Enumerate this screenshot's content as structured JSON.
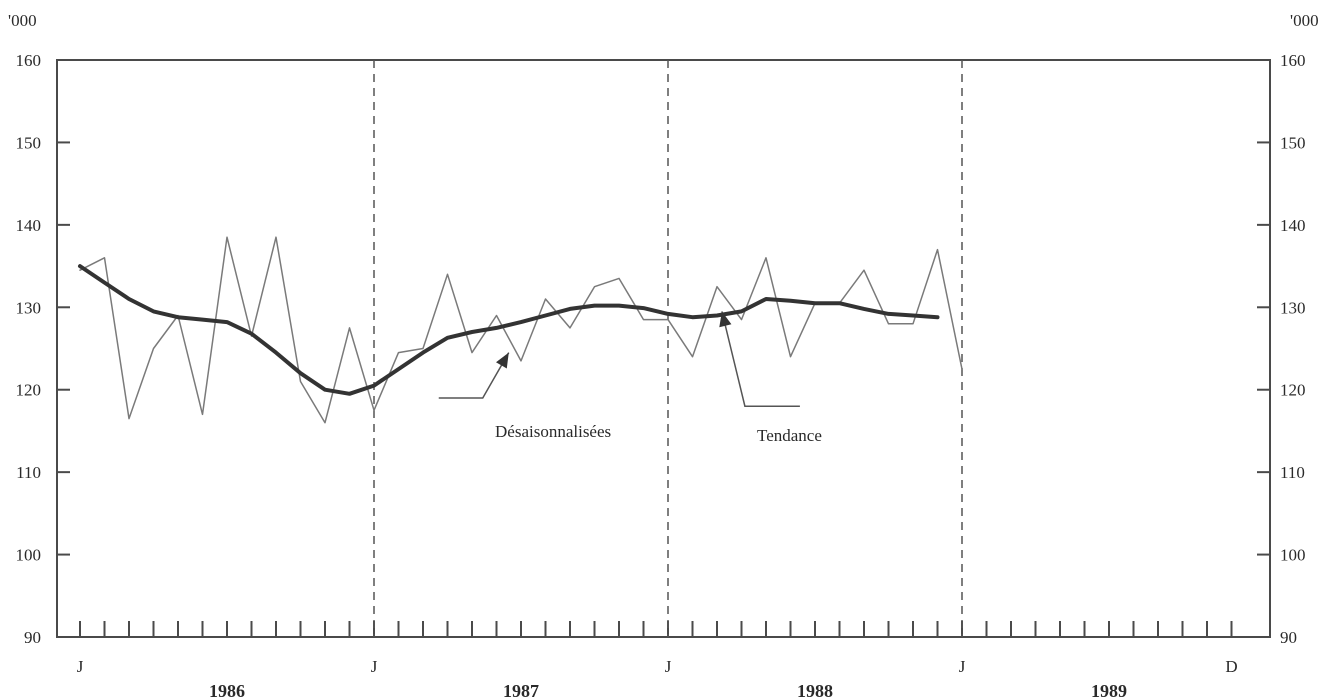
{
  "chart_data": {
    "type": "line",
    "title": "",
    "unit_label_left": "'000",
    "unit_label_right": "'000",
    "ylim": [
      90,
      160
    ],
    "y_ticks": [
      90,
      100,
      110,
      120,
      130,
      140,
      150,
      160
    ],
    "y_tick_labels": [
      "90",
      "100",
      "110",
      "120",
      "130",
      "140",
      "150",
      "160"
    ],
    "x_month_markers": [
      "J",
      "J",
      "J",
      "J",
      "D"
    ],
    "year_labels": [
      "1986",
      "1987",
      "1988",
      "1989"
    ],
    "x_range_months": [
      0,
      47
    ],
    "grid": false,
    "series": [
      {
        "name": "Désaisonnalisées",
        "style": "thin",
        "color": "#7a7a7a",
        "values": [
          134.5,
          136,
          116.5,
          125,
          129,
          117,
          138.5,
          126.5,
          138.5,
          121,
          116,
          127.5,
          117.5,
          124.5,
          125,
          134,
          124.5,
          129,
          123.5,
          131,
          127.5,
          132.5,
          133.5,
          128.5,
          128.5,
          124,
          132.5,
          128.5,
          136,
          124,
          130.5,
          130.5,
          134.5,
          128,
          128,
          137,
          122.5
        ]
      },
      {
        "name": "Tendance",
        "style": "thick",
        "color": "#333333",
        "values": [
          135,
          133,
          131,
          129.5,
          128.8,
          128.5,
          128.2,
          126.8,
          124.5,
          122,
          120,
          119.5,
          120.5,
          122.5,
          124.5,
          126.3,
          127,
          127.5,
          128.2,
          129,
          129.8,
          130.2,
          130.2,
          129.9,
          129.2,
          128.8,
          129,
          129.5,
          131,
          130.8,
          130.5,
          130.5,
          129.8,
          129.2,
          129,
          128.8
        ]
      }
    ],
    "annotations": [
      {
        "text": "Désaisonnalisées",
        "series": "Désaisonnalisées",
        "month": 17.5
      },
      {
        "text": "Tendance",
        "series": "Tendance",
        "month": 26.2
      }
    ]
  }
}
